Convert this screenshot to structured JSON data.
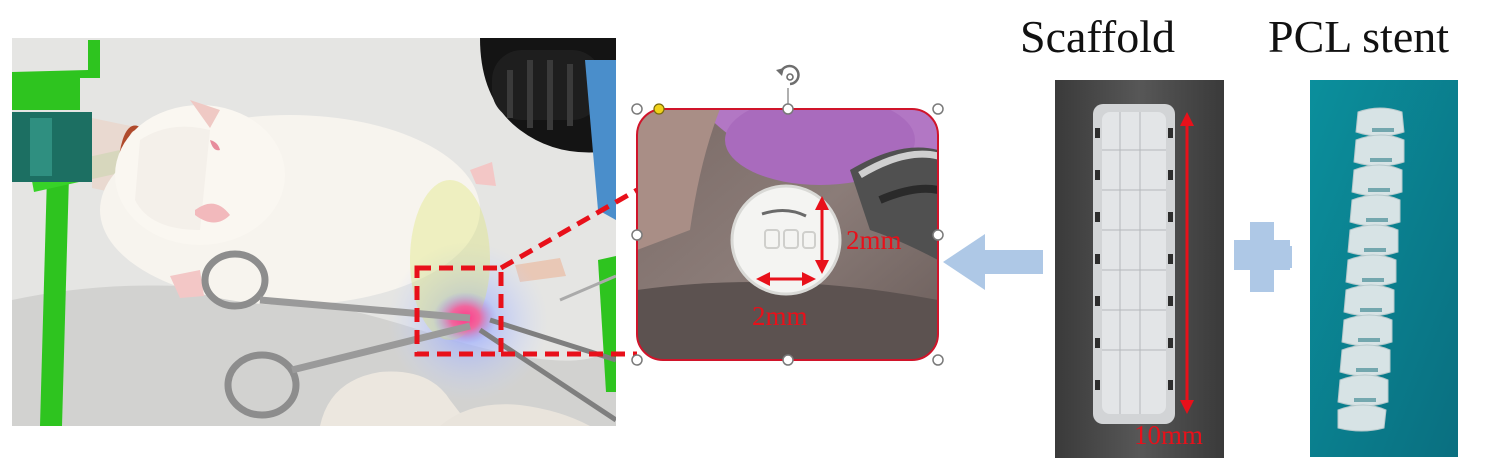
{
  "labels": {
    "scaffold": "Scaffold",
    "pcl_stent": "PCL stent"
  },
  "dimensions": {
    "inset_height": "2mm",
    "inset_width": "2mm",
    "scaffold_length": "10mm"
  },
  "colors": {
    "annotation": "#e8101a",
    "arrow": "#aec8e6",
    "plus": "#aec8e6",
    "selection_handle": "#7a7a7a"
  },
  "icons": {
    "rotate_handle": "rotate-handle-icon",
    "left_arrow": "left-arrow-icon",
    "plus": "plus-icon"
  }
}
